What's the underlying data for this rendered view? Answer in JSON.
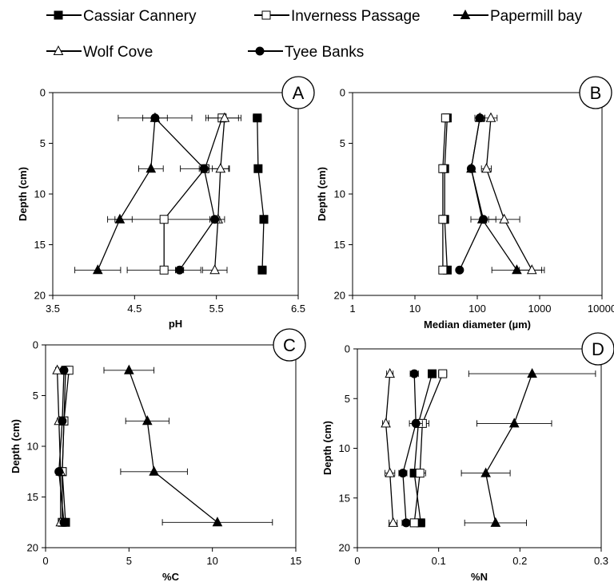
{
  "legend": {
    "entries": [
      {
        "name": "Cassiar Cannery",
        "marker": "square",
        "fill": "#000000"
      },
      {
        "name": "Inverness Passage",
        "marker": "square",
        "fill": "#ffffff"
      },
      {
        "name": "Papermill bay",
        "marker": "triangle",
        "fill": "#000000"
      },
      {
        "name": "Wolf Cove",
        "marker": "triangle",
        "fill": "#ffffff"
      },
      {
        "name": "Tyee Banks",
        "marker": "circle",
        "fill": "#000000"
      }
    ]
  },
  "chart_data": [
    {
      "panel": "A",
      "type": "line",
      "xlabel": "pH",
      "ylabel": "Depth (cm)",
      "xlim": [
        3.5,
        6.5
      ],
      "ylim": [
        0,
        20
      ],
      "y_inverted": true,
      "x_scale": "linear",
      "xticks": [
        "3.5",
        "4.5",
        "5.5",
        "6.5"
      ],
      "yticks": [
        "0",
        "5",
        "10",
        "15",
        "20"
      ],
      "series": [
        {
          "name": "Cassiar Cannery",
          "points": [
            {
              "x": 6.0,
              "y": 2.5,
              "err": 0.05
            },
            {
              "x": 6.01,
              "y": 7.5,
              "err": 0.03
            },
            {
              "x": 6.08,
              "y": 12.5,
              "err": 0.04
            },
            {
              "x": 6.06,
              "y": 17.5,
              "err": 0.05
            }
          ]
        },
        {
          "name": "Inverness Passage",
          "points": [
            {
              "x": 5.57,
              "y": 2.5,
              "err": 0.2
            },
            {
              "x": 5.36,
              "y": 7.5,
              "err": 0.3
            },
            {
              "x": 4.86,
              "y": 12.5,
              "err": 0.6
            },
            {
              "x": 4.86,
              "y": 17.5,
              "err": 0.45
            }
          ]
        },
        {
          "name": "Papermill bay",
          "points": [
            {
              "x": 4.75,
              "y": 2.5,
              "err": 0.45
            },
            {
              "x": 4.7,
              "y": 7.5,
              "err": 0.15
            },
            {
              "x": 4.32,
              "y": 12.5,
              "err": 0.15
            },
            {
              "x": 4.05,
              "y": 17.5,
              "err": 0.28
            }
          ]
        },
        {
          "name": "Wolf Cove",
          "points": [
            {
              "x": 5.6,
              "y": 2.5,
              "err": 0.2
            },
            {
              "x": 5.55,
              "y": 7.5,
              "err": 0.1
            },
            {
              "x": 5.52,
              "y": 12.5,
              "err": 0.08
            },
            {
              "x": 5.48,
              "y": 17.5,
              "err": 0.15
            }
          ]
        },
        {
          "name": "Tyee Banks",
          "points": [
            {
              "x": 4.75,
              "y": 2.5,
              "err": 0.15
            },
            {
              "x": 5.35,
              "y": 7.5,
              "err": 0.06
            },
            {
              "x": 5.48,
              "y": 12.5,
              "err": 0.06
            },
            {
              "x": 5.05,
              "y": 17.5,
              "err": 0.05
            }
          ]
        }
      ]
    },
    {
      "panel": "B",
      "type": "line",
      "xlabel": "Median diameter (µm)",
      "ylabel": "Depth (cm)",
      "xlim": [
        1,
        10000
      ],
      "ylim": [
        0,
        20
      ],
      "y_inverted": true,
      "x_scale": "log",
      "xticks": [
        "1",
        "10",
        "100",
        "1000",
        "10000"
      ],
      "yticks": [
        "0",
        "5",
        "10",
        "15",
        "20"
      ],
      "series": [
        {
          "name": "Cassiar Cannery",
          "points": [
            {
              "x": 33,
              "y": 2.5,
              "err": 0
            },
            {
              "x": 30,
              "y": 7.5,
              "err": 0
            },
            {
              "x": 30,
              "y": 12.5,
              "err": 0
            },
            {
              "x": 33,
              "y": 17.5,
              "err": 0
            }
          ]
        },
        {
          "name": "Inverness Passage",
          "points": [
            {
              "x": 31,
              "y": 2.5,
              "err": 0
            },
            {
              "x": 28,
              "y": 7.5,
              "err": 0
            },
            {
              "x": 28,
              "y": 12.5,
              "err": 0
            },
            {
              "x": 28,
              "y": 17.5,
              "err": 0
            }
          ]
        },
        {
          "name": "Papermill bay",
          "points": [
            {
              "x": 110,
              "y": 2.5,
              "err": 0
            },
            {
              "x": 80,
              "y": 7.5,
              "err": 0
            },
            {
              "x": 120,
              "y": 12.5,
              "err": 0
            },
            {
              "x": 430,
              "y": 17.5,
              "err": 0.4
            }
          ]
        },
        {
          "name": "Wolf Cove",
          "points": [
            {
              "x": 165,
              "y": 2.5,
              "err": 0.1
            },
            {
              "x": 140,
              "y": 7.5,
              "err": 0.08
            },
            {
              "x": 270,
              "y": 12.5,
              "err": 0.25
            },
            {
              "x": 750,
              "y": 17.5,
              "err": 0.2
            }
          ]
        },
        {
          "name": "Tyee Banks",
          "points": [
            {
              "x": 110,
              "y": 2.5,
              "err": 0.08
            },
            {
              "x": 80,
              "y": 7.5,
              "err": 0
            },
            {
              "x": 125,
              "y": 12.5,
              "err": 0.2
            },
            {
              "x": 52,
              "y": 17.5,
              "err": 0
            }
          ]
        }
      ]
    },
    {
      "panel": "C",
      "type": "line",
      "xlabel": "%C",
      "ylabel": "Depth (cm)",
      "xlim": [
        0,
        15
      ],
      "ylim": [
        0,
        20
      ],
      "y_inverted": true,
      "x_scale": "linear",
      "xticks": [
        "0",
        "5",
        "10",
        "15"
      ],
      "yticks": [
        "0",
        "5",
        "10",
        "15",
        "20"
      ],
      "series": [
        {
          "name": "Cassiar Cannery",
          "points": [
            {
              "x": 1.2,
              "y": 2.5,
              "err": 0.1
            },
            {
              "x": 1.1,
              "y": 7.5,
              "err": 0.1
            },
            {
              "x": 1.0,
              "y": 12.5,
              "err": 0.1
            },
            {
              "x": 1.2,
              "y": 17.5,
              "err": 0.1
            }
          ]
        },
        {
          "name": "Inverness Passage",
          "points": [
            {
              "x": 1.4,
              "y": 2.5,
              "err": 0.1
            },
            {
              "x": 1.1,
              "y": 7.5,
              "err": 0.1
            },
            {
              "x": 1.0,
              "y": 12.5,
              "err": 0.1
            },
            {
              "x": 1.0,
              "y": 17.5,
              "err": 0.1
            }
          ]
        },
        {
          "name": "Papermill bay",
          "points": [
            {
              "x": 5.0,
              "y": 2.5,
              "err": 1.5
            },
            {
              "x": 6.1,
              "y": 7.5,
              "err": 1.3
            },
            {
              "x": 6.5,
              "y": 12.5,
              "err": 2.0
            },
            {
              "x": 10.3,
              "y": 17.5,
              "err": 3.3
            }
          ]
        },
        {
          "name": "Wolf Cove",
          "points": [
            {
              "x": 0.7,
              "y": 2.5,
              "err": 0.1
            },
            {
              "x": 0.8,
              "y": 7.5,
              "err": 0.1
            },
            {
              "x": 0.9,
              "y": 12.5,
              "err": 0.1
            },
            {
              "x": 0.9,
              "y": 17.5,
              "err": 0.1
            }
          ]
        },
        {
          "name": "Tyee Banks",
          "points": [
            {
              "x": 1.1,
              "y": 2.5,
              "err": 0.1
            },
            {
              "x": 1.0,
              "y": 7.5,
              "err": 0.1
            },
            {
              "x": 0.8,
              "y": 12.5,
              "err": 0.1
            },
            {
              "x": 1.1,
              "y": 17.5,
              "err": 0.1
            }
          ]
        }
      ]
    },
    {
      "panel": "D",
      "type": "line",
      "xlabel": "%N",
      "ylabel": "Depth (cm)",
      "xlim": [
        0,
        0.3
      ],
      "ylim": [
        0,
        20
      ],
      "y_inverted": true,
      "x_scale": "linear",
      "xticks": [
        "0",
        "0.1",
        "0.2",
        "0.3"
      ],
      "yticks": [
        "0",
        "5",
        "10",
        "15",
        "20"
      ],
      "series": [
        {
          "name": "Cassiar Cannery",
          "points": [
            {
              "x": 0.092,
              "y": 2.5,
              "err": 0.005
            },
            {
              "x": 0.075,
              "y": 7.5,
              "err": 0.005
            },
            {
              "x": 0.07,
              "y": 12.5,
              "err": 0.005
            },
            {
              "x": 0.078,
              "y": 17.5,
              "err": 0.005
            }
          ]
        },
        {
          "name": "Inverness Passage",
          "points": [
            {
              "x": 0.105,
              "y": 2.5,
              "err": 0.005
            },
            {
              "x": 0.08,
              "y": 7.5,
              "err": 0.008
            },
            {
              "x": 0.077,
              "y": 12.5,
              "err": 0.007
            },
            {
              "x": 0.07,
              "y": 17.5,
              "err": 0.005
            }
          ]
        },
        {
          "name": "Papermill bay",
          "points": [
            {
              "x": 0.215,
              "y": 2.5,
              "err": 0.078
            },
            {
              "x": 0.193,
              "y": 7.5,
              "err": 0.046
            },
            {
              "x": 0.158,
              "y": 12.5,
              "err": 0.03
            },
            {
              "x": 0.17,
              "y": 17.5,
              "err": 0.038
            }
          ]
        },
        {
          "name": "Wolf Cove",
          "points": [
            {
              "x": 0.04,
              "y": 2.5,
              "err": 0.004
            },
            {
              "x": 0.035,
              "y": 7.5,
              "err": 0.004
            },
            {
              "x": 0.04,
              "y": 12.5,
              "err": 0.006
            },
            {
              "x": 0.044,
              "y": 17.5,
              "err": 0.005
            }
          ]
        },
        {
          "name": "Tyee Banks",
          "points": [
            {
              "x": 0.07,
              "y": 2.5,
              "err": 0.005
            },
            {
              "x": 0.072,
              "y": 7.5,
              "err": 0.008
            },
            {
              "x": 0.056,
              "y": 12.5,
              "err": 0.005
            },
            {
              "x": 0.06,
              "y": 17.5,
              "err": 0.005
            }
          ]
        }
      ]
    }
  ]
}
